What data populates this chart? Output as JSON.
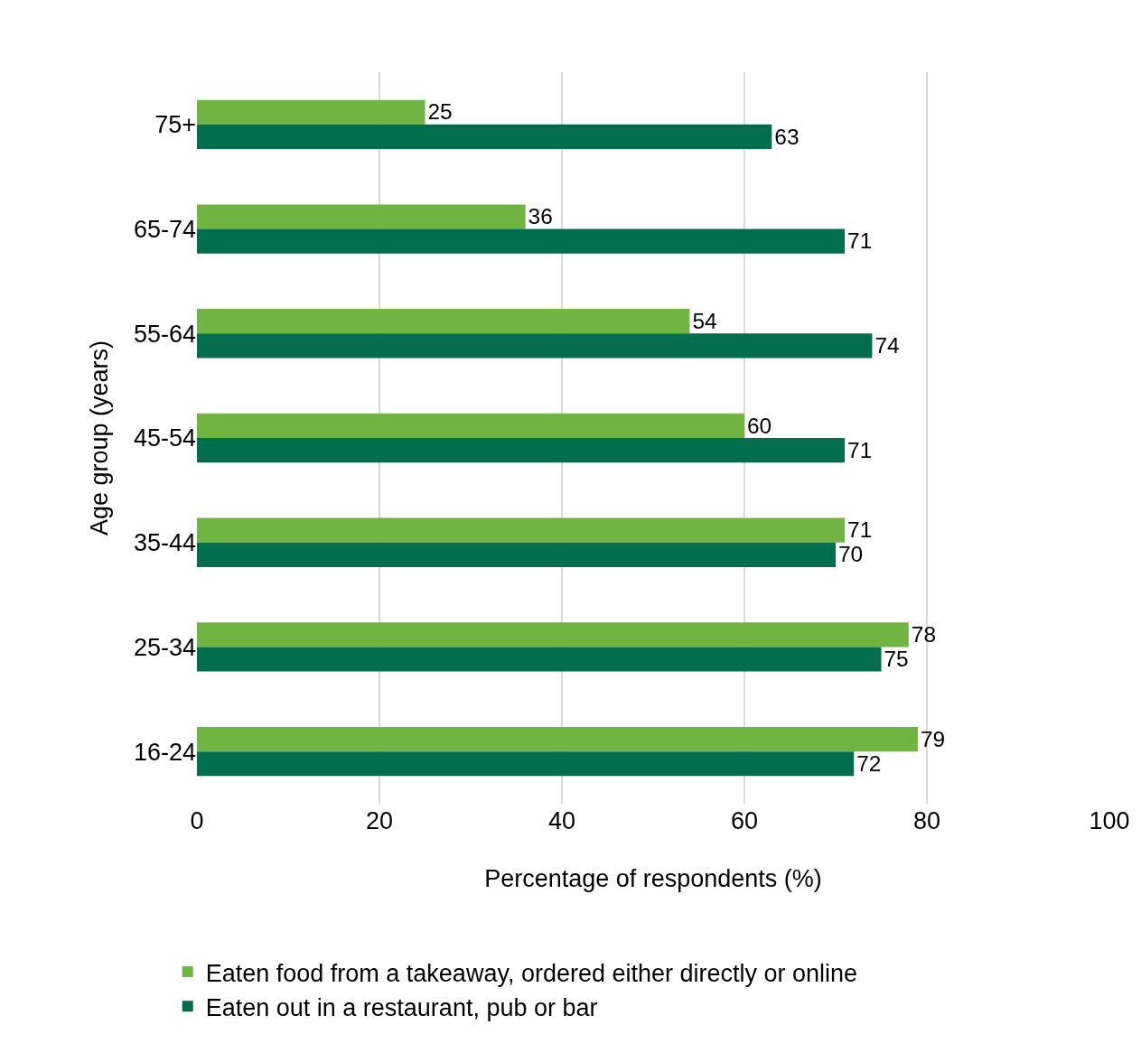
{
  "chart_data": {
    "type": "bar",
    "orientation": "horizontal",
    "xlabel": "Percentage of respondents (%)",
    "ylabel": "Age group (years)",
    "categories": [
      "75+",
      "65-74",
      "55-64",
      "45-54",
      "35-44",
      "25-34",
      "16-24"
    ],
    "series": [
      {
        "name": "Eaten food from a takeaway, ordered either directly or online",
        "color": "#70b441",
        "values": [
          25,
          36,
          54,
          60,
          71,
          78,
          79
        ]
      },
      {
        "name": "Eaten out in a restaurant, pub or bar",
        "color": "#006e4d",
        "values": [
          63,
          71,
          74,
          71,
          70,
          75,
          72
        ]
      }
    ],
    "xlim": [
      0,
      100
    ],
    "xticks": [
      0,
      20,
      40,
      60,
      80,
      100
    ],
    "grid": "x",
    "legend": "bottom",
    "data_labels": true
  }
}
